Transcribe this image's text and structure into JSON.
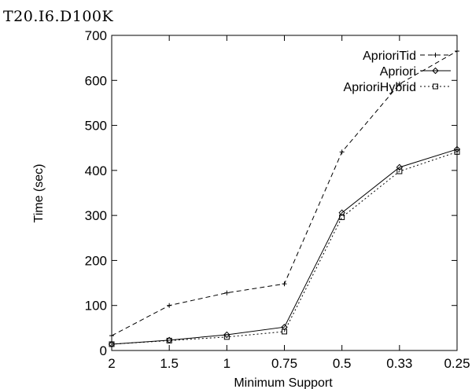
{
  "chart_data": {
    "type": "line",
    "title": "T20.I6.D100K",
    "xlabel": "Minimum Support",
    "ylabel": "Time (sec)",
    "categories": [
      "2",
      "1.5",
      "1",
      "0.75",
      "0.5",
      "0.33",
      "0.25"
    ],
    "x_positions": [
      2,
      1.5,
      1,
      0.75,
      0.5,
      0.33,
      0.25
    ],
    "ylim": [
      0,
      700
    ],
    "yticks": [
      0,
      100,
      200,
      300,
      400,
      500,
      600,
      700
    ],
    "grid": false,
    "legend_position": "top-right",
    "series": [
      {
        "name": "AprioriTid",
        "values": [
          33,
          100,
          128,
          148,
          441,
          592,
          665
        ],
        "marker": "plus",
        "dash": "dashed",
        "color": "#000000"
      },
      {
        "name": "Apriori",
        "values": [
          14,
          23,
          35,
          52,
          306,
          407,
          447
        ],
        "marker": "diamond",
        "dash": "solid",
        "color": "#000000"
      },
      {
        "name": "AprioriHybrid",
        "values": [
          14,
          22,
          30,
          42,
          296,
          398,
          441
        ],
        "marker": "square",
        "dash": "dotted",
        "color": "#000000"
      }
    ]
  }
}
